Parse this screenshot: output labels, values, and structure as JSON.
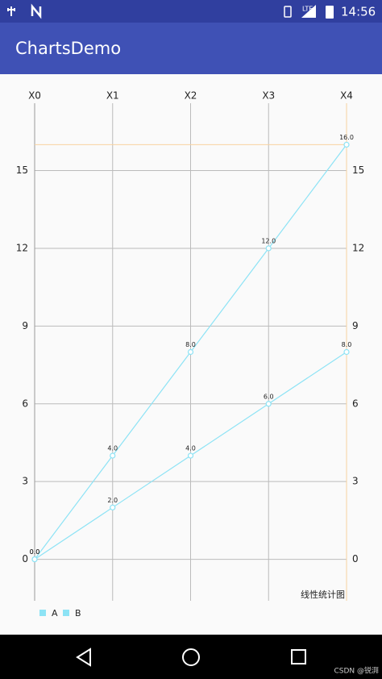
{
  "status_bar": {
    "network": "LTE",
    "time": "14:56"
  },
  "app_bar": {
    "title": "ChartsDemo"
  },
  "chart_data": {
    "type": "line",
    "categories": [
      "X0",
      "X1",
      "X2",
      "X3",
      "X4"
    ],
    "series": [
      {
        "name": "A",
        "color": "#8de3f5",
        "values": [
          0,
          4,
          8,
          12,
          16
        ],
        "value_labels": [
          "0.0",
          "4.0",
          "8.0",
          "12.0",
          "16.0"
        ]
      },
      {
        "name": "B",
        "color": "#8de3f5",
        "values": [
          0,
          2,
          4,
          6,
          8
        ],
        "value_labels": [
          "0.0",
          "2.0",
          "4.0",
          "6.0",
          "8.0"
        ]
      }
    ],
    "ylim": [
      -1.6,
      17.6
    ],
    "yticks": [
      0,
      3,
      6,
      9,
      12,
      15
    ],
    "grid": true,
    "limit_line": {
      "value": 16,
      "color": "#f7d2a0"
    },
    "description": "线性统计图",
    "legend": "bottom-left"
  },
  "watermark": "CSDN @锐湃"
}
